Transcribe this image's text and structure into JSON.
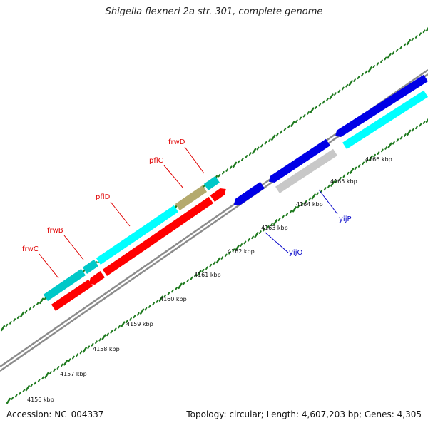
{
  "title": "Shigella flexneri 2a str. 301, complete genome",
  "footer": {
    "accession": "Accession: NC_004337",
    "summary": "Topology: circular; Length: 4,607,203 bp; Genes: 4,305"
  },
  "colors": {
    "backbone": "#8c8c8c",
    "tick": "#1e7a1e",
    "red": "#ff0000",
    "blue": "#0000e6",
    "cyan": "#00ffff",
    "teal": "#00c8c8",
    "khaki": "#b4aa6e",
    "gray": "#c8c8c8",
    "red_label": "#e00000",
    "blue_label": "#0000c8"
  },
  "ticks": [
    "4156 kbp",
    "4157 kbp",
    "4158 kbp",
    "4159 kbp",
    "4160 kbp",
    "4161 kbp",
    "4162 kbp",
    "4163 kbp",
    "4164 kbp",
    "4165 kbp",
    "4166 kbp"
  ],
  "gene_labels": {
    "frwC": "frwC",
    "frwB": "frwB",
    "pflD": "pflD",
    "pflC": "pflC",
    "frwD": "frwD",
    "yijO": "yijO",
    "yijP": "yijP"
  }
}
